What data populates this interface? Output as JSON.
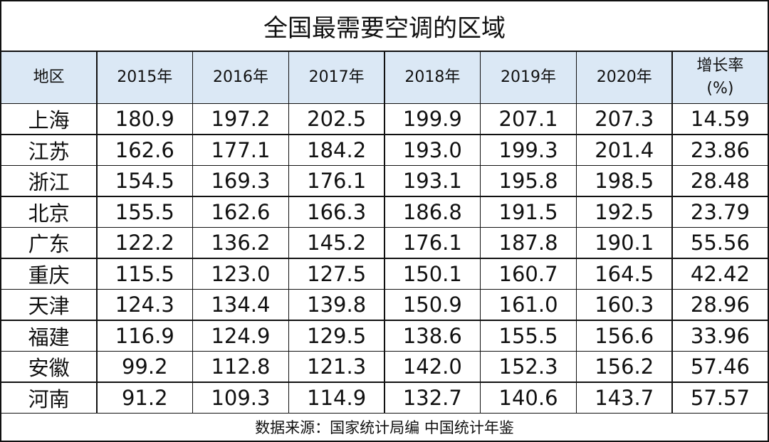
{
  "title": "全国最需要空调的区域",
  "table": {
    "header": [
      "地区",
      "2015年",
      "2016年",
      "2017年",
      "2018年",
      "2019年",
      "2020年",
      "增长率\n(%)"
    ],
    "rows": [
      [
        "上海",
        "180.9",
        "197.2",
        "202.5",
        "199.9",
        "207.1",
        "207.3",
        "14.59"
      ],
      [
        "江苏",
        "162.6",
        "177.1",
        "184.2",
        "193.0",
        "199.3",
        "201.4",
        "23.86"
      ],
      [
        "浙江",
        "154.5",
        "169.3",
        "176.1",
        "193.1",
        "195.8",
        "198.5",
        "28.48"
      ],
      [
        "北京",
        "155.5",
        "162.6",
        "166.3",
        "186.8",
        "191.5",
        "192.5",
        "23.79"
      ],
      [
        "广东",
        "122.2",
        "136.2",
        "145.2",
        "176.1",
        "187.8",
        "190.1",
        "55.56"
      ],
      [
        "重庆",
        "115.5",
        "123.0",
        "127.5",
        "150.1",
        "160.7",
        "164.5",
        "42.42"
      ],
      [
        "天津",
        "124.3",
        "134.4",
        "139.8",
        "150.9",
        "161.0",
        "160.3",
        "28.96"
      ],
      [
        "福建",
        "116.9",
        "124.9",
        "129.5",
        "138.6",
        "155.5",
        "156.6",
        "33.96"
      ],
      [
        "安徽",
        "99.2",
        "112.8",
        "121.3",
        "142.0",
        "152.3",
        "156.2",
        "57.46"
      ],
      [
        "河南",
        "91.2",
        "109.3",
        "114.9",
        "132.7",
        "140.6",
        "143.7",
        "57.57"
      ]
    ]
  },
  "footer": "数据来源：国家统计局编 中国统计年鉴"
}
